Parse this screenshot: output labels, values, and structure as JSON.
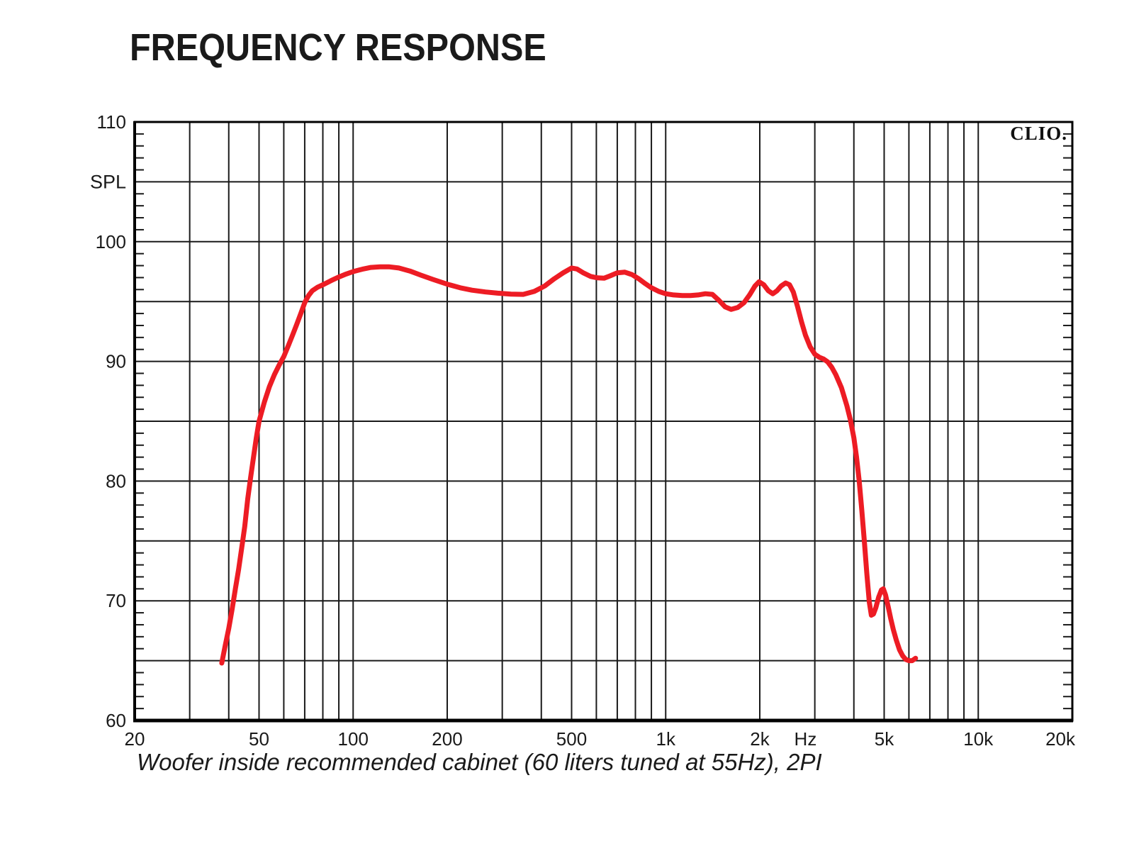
{
  "style": {
    "background": "#ffffff",
    "grid_color": "#1a1a1a",
    "frame_color": "#000000",
    "text_color": "#1a1a1a",
    "curve_color": "#ed1c24"
  },
  "chart_data": {
    "type": "line",
    "title": "FREQUENCY RESPONSE",
    "logo": "CLIO.",
    "caption": "Woofer inside recommended cabinet (60 liters tuned at 55Hz), 2PI",
    "x_axis": {
      "scale": "log",
      "min": 20,
      "max": 20000,
      "unit": "Hz",
      "ticks": [
        {
          "f": 20,
          "label": "20"
        },
        {
          "f": 50,
          "label": "50"
        },
        {
          "f": 100,
          "label": "100"
        },
        {
          "f": 200,
          "label": "200"
        },
        {
          "f": 500,
          "label": "500"
        },
        {
          "f": 1000,
          "label": "1k"
        },
        {
          "f": 2000,
          "label": "2k"
        },
        {
          "f": 2800,
          "label": "Hz"
        },
        {
          "f": 5000,
          "label": "5k"
        },
        {
          "f": 10000,
          "label": "10k"
        },
        {
          "f": 20000,
          "label": "20k"
        }
      ],
      "gridlines": [
        30,
        40,
        50,
        60,
        70,
        80,
        90,
        100,
        200,
        300,
        400,
        500,
        600,
        700,
        800,
        900,
        1000,
        2000,
        3000,
        4000,
        5000,
        6000,
        7000,
        8000,
        9000,
        10000
      ]
    },
    "y_axis": {
      "label": "SPL",
      "label_db": 105,
      "min": 60,
      "max": 110,
      "major_gridline_step": 5,
      "minor_tick_step": 1,
      "ticks": [
        {
          "db": 110,
          "label": "110"
        },
        {
          "db": 100,
          "label": "100"
        },
        {
          "db": 90,
          "label": "90"
        },
        {
          "db": 80,
          "label": "80"
        },
        {
          "db": 70,
          "label": "70"
        },
        {
          "db": 60,
          "label": "60"
        }
      ]
    },
    "series": [
      {
        "name": "woofer-spl-response",
        "color": "#ed1c24",
        "points": [
          [
            38,
            64.8
          ],
          [
            39,
            66.3
          ],
          [
            40,
            67.7
          ],
          [
            41,
            69.3
          ],
          [
            42,
            71.0
          ],
          [
            43,
            72.6
          ],
          [
            44,
            74.4
          ],
          [
            45,
            76.2
          ],
          [
            46,
            78.5
          ],
          [
            47,
            80.3
          ],
          [
            48,
            82.0
          ],
          [
            49,
            83.6
          ],
          [
            50,
            85.0
          ],
          [
            52,
            86.6
          ],
          [
            54,
            87.9
          ],
          [
            56,
            88.9
          ],
          [
            58,
            89.7
          ],
          [
            60,
            90.4
          ],
          [
            62,
            91.3
          ],
          [
            64,
            92.2
          ],
          [
            66,
            93.1
          ],
          [
            68,
            94.0
          ],
          [
            70,
            94.9
          ],
          [
            72,
            95.5
          ],
          [
            74,
            95.9
          ],
          [
            77,
            96.2
          ],
          [
            80,
            96.4
          ],
          [
            85,
            96.75
          ],
          [
            90,
            97.05
          ],
          [
            95,
            97.3
          ],
          [
            100,
            97.5
          ],
          [
            107,
            97.7
          ],
          [
            114,
            97.85
          ],
          [
            122,
            97.9
          ],
          [
            130,
            97.9
          ],
          [
            140,
            97.8
          ],
          [
            152,
            97.55
          ],
          [
            165,
            97.2
          ],
          [
            180,
            96.85
          ],
          [
            200,
            96.45
          ],
          [
            220,
            96.15
          ],
          [
            240,
            95.95
          ],
          [
            265,
            95.8
          ],
          [
            290,
            95.7
          ],
          [
            320,
            95.62
          ],
          [
            350,
            95.6
          ],
          [
            380,
            95.85
          ],
          [
            410,
            96.3
          ],
          [
            440,
            96.9
          ],
          [
            470,
            97.4
          ],
          [
            500,
            97.8
          ],
          [
            520,
            97.72
          ],
          [
            545,
            97.4
          ],
          [
            575,
            97.1
          ],
          [
            605,
            96.98
          ],
          [
            635,
            96.95
          ],
          [
            665,
            97.15
          ],
          [
            700,
            97.4
          ],
          [
            740,
            97.45
          ],
          [
            780,
            97.25
          ],
          [
            820,
            96.9
          ],
          [
            860,
            96.5
          ],
          [
            900,
            96.15
          ],
          [
            950,
            95.85
          ],
          [
            1000,
            95.65
          ],
          [
            1060,
            95.55
          ],
          [
            1130,
            95.5
          ],
          [
            1200,
            95.5
          ],
          [
            1270,
            95.55
          ],
          [
            1340,
            95.65
          ],
          [
            1410,
            95.6
          ],
          [
            1480,
            95.1
          ],
          [
            1550,
            94.55
          ],
          [
            1620,
            94.35
          ],
          [
            1700,
            94.5
          ],
          [
            1780,
            94.9
          ],
          [
            1860,
            95.6
          ],
          [
            1930,
            96.3
          ],
          [
            1990,
            96.65
          ],
          [
            2060,
            96.4
          ],
          [
            2130,
            95.9
          ],
          [
            2200,
            95.65
          ],
          [
            2270,
            95.9
          ],
          [
            2340,
            96.3
          ],
          [
            2420,
            96.55
          ],
          [
            2490,
            96.4
          ],
          [
            2560,
            95.8
          ],
          [
            2640,
            94.6
          ],
          [
            2720,
            93.3
          ],
          [
            2800,
            92.2
          ],
          [
            2900,
            91.2
          ],
          [
            3000,
            90.6
          ],
          [
            3100,
            90.35
          ],
          [
            3200,
            90.2
          ],
          [
            3300,
            89.95
          ],
          [
            3400,
            89.5
          ],
          [
            3500,
            88.9
          ],
          [
            3650,
            87.8
          ],
          [
            3800,
            86.3
          ],
          [
            3900,
            85.1
          ],
          [
            4000,
            83.6
          ],
          [
            4080,
            82.0
          ],
          [
            4160,
            80.0
          ],
          [
            4240,
            77.6
          ],
          [
            4320,
            75.0
          ],
          [
            4400,
            72.3
          ],
          [
            4480,
            69.9
          ],
          [
            4550,
            68.8
          ],
          [
            4620,
            68.9
          ],
          [
            4700,
            69.4
          ],
          [
            4800,
            70.3
          ],
          [
            4900,
            70.9
          ],
          [
            4970,
            71.0
          ],
          [
            5050,
            70.5
          ],
          [
            5150,
            69.5
          ],
          [
            5250,
            68.5
          ],
          [
            5350,
            67.6
          ],
          [
            5470,
            66.7
          ],
          [
            5600,
            65.9
          ],
          [
            5730,
            65.4
          ],
          [
            5860,
            65.1
          ],
          [
            6000,
            65.0
          ],
          [
            6150,
            65.0
          ],
          [
            6300,
            65.2
          ]
        ]
      }
    ]
  }
}
